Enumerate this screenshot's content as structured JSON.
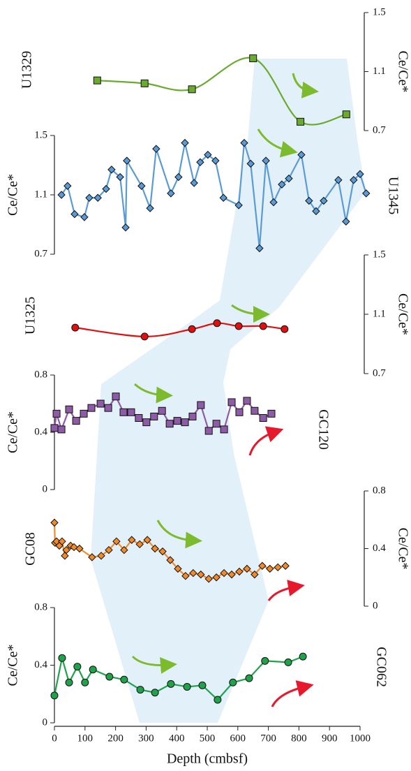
{
  "chart_data": [
    {
      "type": "line",
      "label": "U1329",
      "ylabel": "Ce/Ce*",
      "axis_side": "right",
      "marker": "square",
      "smooth": true,
      "color": "#6aaa2e",
      "x": [
        140,
        295,
        450,
        650,
        805,
        955
      ],
      "values": [
        1.04,
        1.02,
        0.98,
        1.19,
        0.76,
        0.81
      ],
      "ylim": [
        0.7,
        1.5
      ],
      "yticks": [
        0.7,
        1.1,
        1.5
      ]
    },
    {
      "type": "line",
      "label": "U1345",
      "ylabel": "Ce/Ce*",
      "axis_side": "left",
      "marker": "diamond",
      "smooth": false,
      "color": "#5b9bd5",
      "x": [
        23,
        43,
        66,
        98,
        114,
        142,
        169,
        187,
        215,
        233,
        237,
        285,
        313,
        333,
        381,
        406,
        427,
        457,
        477,
        502,
        527,
        553,
        603,
        621,
        642,
        671,
        692,
        717,
        744,
        767,
        808,
        833,
        856,
        881,
        929,
        954,
        979,
        1000,
        1020
      ],
      "values": [
        1.1,
        1.16,
        0.97,
        0.95,
        1.08,
        1.08,
        1.14,
        1.27,
        1.22,
        0.88,
        1.33,
        1.16,
        1.01,
        1.41,
        1.11,
        1.22,
        1.45,
        1.18,
        1.32,
        1.37,
        1.33,
        1.08,
        1.03,
        1.45,
        1.31,
        0.74,
        1.33,
        1.05,
        1.17,
        1.21,
        1.37,
        1.06,
        0.99,
        1.06,
        1.2,
        0.92,
        1.2,
        1.24,
        1.11
      ],
      "ylim": [
        0.7,
        1.5
      ],
      "yticks": [
        0.7,
        1.1,
        1.5
      ]
    },
    {
      "type": "line",
      "label": "U1325",
      "ylabel": "Ce/Ce*",
      "axis_side": "right",
      "marker": "circle",
      "smooth": true,
      "color": "#e01010",
      "x": [
        68,
        295,
        450,
        532,
        603,
        683,
        753
      ],
      "values": [
        1.01,
        0.95,
        1.0,
        1.04,
        1.02,
        1.02,
        1.0
      ],
      "ylim": [
        0.7,
        1.5
      ],
      "yticks": [
        0.7,
        1.1,
        1.5
      ]
    },
    {
      "type": "line",
      "label": "GC120",
      "ylabel": "Ce/Ce*",
      "axis_side": "left",
      "marker": "square",
      "smooth": false,
      "color": "#8e5ba6",
      "x": [
        0,
        7,
        23,
        48,
        71,
        96,
        121,
        151,
        176,
        201,
        226,
        251,
        276,
        301,
        326,
        352,
        377,
        402,
        427,
        452,
        479,
        505,
        530,
        555,
        580,
        605,
        630,
        655,
        683,
        710
      ],
      "values": [
        0.43,
        0.53,
        0.42,
        0.56,
        0.48,
        0.53,
        0.57,
        0.6,
        0.57,
        0.65,
        0.54,
        0.54,
        0.5,
        0.47,
        0.51,
        0.55,
        0.46,
        0.48,
        0.47,
        0.51,
        0.59,
        0.41,
        0.46,
        0.42,
        0.61,
        0.54,
        0.62,
        0.55,
        0.5,
        0.53
      ],
      "ylim": [
        0,
        0.8
      ],
      "yticks": [
        0,
        0.4,
        0.8
      ]
    },
    {
      "type": "line",
      "label": "GC08",
      "ylabel": "Ce/Ce*",
      "axis_side": "right",
      "marker": "diamond",
      "smooth": false,
      "color": "#f08a2a",
      "x": [
        0,
        2,
        7,
        16,
        25,
        34,
        39,
        53,
        64,
        82,
        123,
        153,
        178,
        203,
        228,
        253,
        279,
        304,
        329,
        354,
        379,
        404,
        429,
        454,
        479,
        505,
        530,
        555,
        580,
        605,
        630,
        655,
        680,
        705,
        731,
        756
      ],
      "values": [
        0.58,
        0.44,
        0.45,
        0.42,
        0.45,
        0.35,
        0.39,
        0.42,
        0.41,
        0.4,
        0.34,
        0.35,
        0.39,
        0.45,
        0.39,
        0.46,
        0.43,
        0.46,
        0.4,
        0.38,
        0.32,
        0.26,
        0.21,
        0.23,
        0.22,
        0.19,
        0.2,
        0.23,
        0.22,
        0.24,
        0.26,
        0.22,
        0.28,
        0.26,
        0.27,
        0.28
      ],
      "ylim": [
        0,
        0.8
      ],
      "yticks": [
        0,
        0.4,
        0.8
      ]
    },
    {
      "type": "line",
      "label": "GC062",
      "ylabel": "Ce/Ce*",
      "axis_side": "left",
      "marker": "circle",
      "smooth": false,
      "color": "#1fa34a",
      "x": [
        0,
        25,
        48,
        75,
        100,
        126,
        180,
        228,
        281,
        329,
        381,
        434,
        484,
        534,
        584,
        637,
        689,
        765,
        813
      ],
      "values": [
        0.19,
        0.45,
        0.28,
        0.39,
        0.28,
        0.37,
        0.32,
        0.3,
        0.23,
        0.21,
        0.27,
        0.25,
        0.26,
        0.16,
        0.28,
        0.31,
        0.43,
        0.42,
        0.46
      ],
      "ylim": [
        0,
        0.8
      ],
      "yticks": [
        0,
        0.4,
        0.8
      ],
      "xlabel": "Depth (cmbsf)",
      "xlim": [
        0,
        1000
      ],
      "xticks": [
        0,
        100,
        200,
        300,
        400,
        500,
        600,
        700,
        800,
        900,
        1000
      ]
    }
  ]
}
